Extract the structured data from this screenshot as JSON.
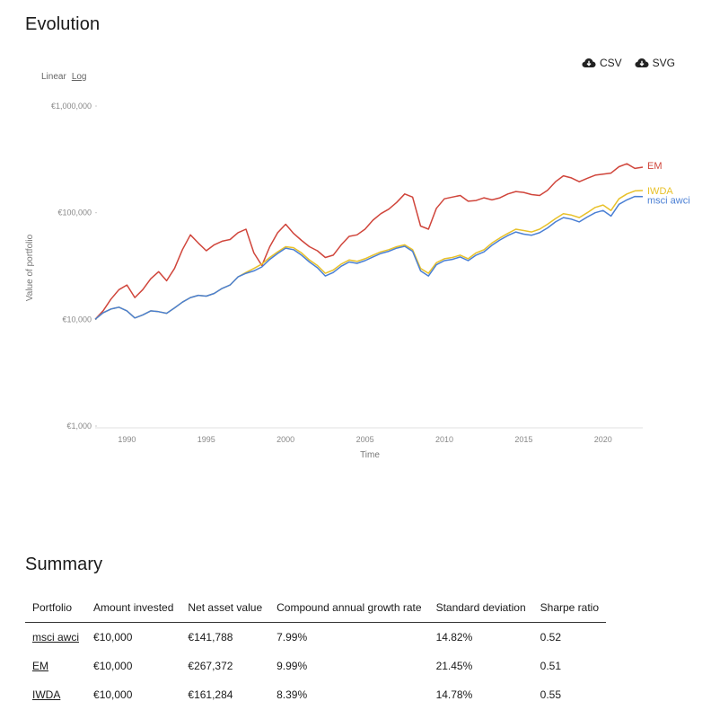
{
  "evolution": {
    "title": "Evolution",
    "scale": {
      "linear_label": "Linear",
      "log_label": "Log",
      "active": "Log"
    },
    "downloads": [
      {
        "label": "CSV",
        "icon": "cloud-download-icon"
      },
      {
        "label": "SVG",
        "icon": "cloud-download-icon"
      }
    ]
  },
  "chart_data": {
    "type": "line",
    "xlabel": "Time",
    "ylabel": "Value of portfolio",
    "yscale": "log",
    "ylim": [
      1000,
      1000000
    ],
    "xlim": [
      1988.0,
      2022.5
    ],
    "y_ticks": [
      {
        "value": 1000,
        "label": "€1,000"
      },
      {
        "value": 10000,
        "label": "€10,000"
      },
      {
        "value": 100000,
        "label": "€100,000"
      },
      {
        "value": 1000000,
        "label": "€1,000,000"
      }
    ],
    "x_ticks": [
      {
        "value": 1990,
        "label": "1990"
      },
      {
        "value": 1995,
        "label": "1995"
      },
      {
        "value": 2000,
        "label": "2000"
      },
      {
        "value": 2005,
        "label": "2005"
      },
      {
        "value": 2010,
        "label": "2010"
      },
      {
        "value": 2015,
        "label": "2015"
      },
      {
        "value": 2020,
        "label": "2020"
      }
    ],
    "grid": false,
    "legend": "end-of-line labels",
    "series": [
      {
        "name": "EM",
        "color": "#d0453b",
        "x": [
          1988.0,
          1988.5,
          1989.0,
          1989.5,
          1990.0,
          1990.5,
          1991.0,
          1991.5,
          1992.0,
          1992.5,
          1993.0,
          1993.5,
          1994.0,
          1994.5,
          1995.0,
          1995.5,
          1996.0,
          1996.5,
          1997.0,
          1997.5,
          1998.0,
          1998.5,
          1999.0,
          1999.5,
          2000.0,
          2000.5,
          2001.0,
          2001.5,
          2002.0,
          2002.5,
          2003.0,
          2003.5,
          2004.0,
          2004.5,
          2005.0,
          2005.5,
          2006.0,
          2006.5,
          2007.0,
          2007.5,
          2008.0,
          2008.5,
          2009.0,
          2009.5,
          2010.0,
          2010.5,
          2011.0,
          2011.5,
          2012.0,
          2012.5,
          2013.0,
          2013.5,
          2014.0,
          2014.5,
          2015.0,
          2015.5,
          2016.0,
          2016.5,
          2017.0,
          2017.5,
          2018.0,
          2018.5,
          2019.0,
          2019.5,
          2020.0,
          2020.5,
          2021.0,
          2021.5,
          2022.0,
          2022.5
        ],
        "values": [
          10000,
          12000,
          15500,
          19000,
          21000,
          16000,
          19000,
          24000,
          28000,
          23000,
          30000,
          45000,
          62000,
          52000,
          44000,
          50000,
          54000,
          56000,
          65000,
          70000,
          42000,
          32000,
          48000,
          65000,
          78000,
          64000,
          55000,
          48000,
          44000,
          38000,
          40000,
          50000,
          60000,
          62000,
          70000,
          85000,
          98000,
          108000,
          125000,
          150000,
          140000,
          75000,
          70000,
          110000,
          135000,
          140000,
          145000,
          128000,
          130000,
          138000,
          132000,
          138000,
          150000,
          158000,
          155000,
          148000,
          145000,
          162000,
          195000,
          222000,
          212000,
          195000,
          210000,
          225000,
          230000,
          235000,
          270000,
          288000,
          260000,
          267372
        ]
      },
      {
        "name": "IWDA",
        "color": "#e8c12a",
        "x": [
          1988.0,
          1988.5,
          1989.0,
          1989.5,
          1990.0,
          1990.5,
          1991.0,
          1991.5,
          1992.0,
          1992.5,
          1993.0,
          1993.5,
          1994.0,
          1994.5,
          1995.0,
          1995.5,
          1996.0,
          1996.5,
          1997.0,
          1997.5,
          1998.0,
          1998.5,
          1999.0,
          1999.5,
          2000.0,
          2000.5,
          2001.0,
          2001.5,
          2002.0,
          2002.5,
          2003.0,
          2003.5,
          2004.0,
          2004.5,
          2005.0,
          2005.5,
          2006.0,
          2006.5,
          2007.0,
          2007.5,
          2008.0,
          2008.5,
          2009.0,
          2009.5,
          2010.0,
          2010.5,
          2011.0,
          2011.5,
          2012.0,
          2012.5,
          2013.0,
          2013.5,
          2014.0,
          2014.5,
          2015.0,
          2015.5,
          2016.0,
          2016.5,
          2017.0,
          2017.5,
          2018.0,
          2018.5,
          2019.0,
          2019.5,
          2020.0,
          2020.5,
          2021.0,
          2021.5,
          2022.0,
          2022.5
        ],
        "values": [
          10000,
          11500,
          12500,
          13000,
          12000,
          10300,
          11000,
          12000,
          11800,
          11400,
          12800,
          14500,
          16000,
          16800,
          16500,
          17500,
          19500,
          21000,
          25000,
          27500,
          30000,
          33000,
          38000,
          43000,
          48000,
          47000,
          42000,
          36000,
          32000,
          27000,
          29000,
          33000,
          36000,
          35000,
          37000,
          40000,
          43000,
          45000,
          48000,
          50000,
          45000,
          30000,
          27000,
          34000,
          37000,
          38000,
          40000,
          37000,
          42000,
          45000,
          52000,
          58000,
          64000,
          70000,
          68000,
          66000,
          70000,
          78000,
          88000,
          98000,
          95000,
          90000,
          100000,
          112000,
          118000,
          105000,
          135000,
          150000,
          160000,
          161284
        ]
      },
      {
        "name": "msci awci",
        "color": "#4a7fd4",
        "x": [
          1988.0,
          1988.5,
          1989.0,
          1989.5,
          1990.0,
          1990.5,
          1991.0,
          1991.5,
          1992.0,
          1992.5,
          1993.0,
          1993.5,
          1994.0,
          1994.5,
          1995.0,
          1995.5,
          1996.0,
          1996.5,
          1997.0,
          1997.5,
          1998.0,
          1998.5,
          1999.0,
          1999.5,
          2000.0,
          2000.5,
          2001.0,
          2001.5,
          2002.0,
          2002.5,
          2003.0,
          2003.5,
          2004.0,
          2004.5,
          2005.0,
          2005.5,
          2006.0,
          2006.5,
          2007.0,
          2007.5,
          2008.0,
          2008.5,
          2009.0,
          2009.5,
          2010.0,
          2010.5,
          2011.0,
          2011.5,
          2012.0,
          2012.5,
          2013.0,
          2013.5,
          2014.0,
          2014.5,
          2015.0,
          2015.5,
          2016.0,
          2016.5,
          2017.0,
          2017.5,
          2018.0,
          2018.5,
          2019.0,
          2019.5,
          2020.0,
          2020.5,
          2021.0,
          2021.5,
          2022.0,
          2022.5
        ],
        "values": [
          10000,
          11500,
          12500,
          13000,
          12000,
          10300,
          11000,
          12000,
          11800,
          11400,
          12800,
          14500,
          16000,
          16800,
          16500,
          17500,
          19500,
          21000,
          25000,
          27000,
          28500,
          31000,
          36500,
          41500,
          46500,
          45000,
          40000,
          34500,
          30500,
          25500,
          27500,
          31500,
          34500,
          33500,
          35500,
          38500,
          41500,
          43500,
          46500,
          48500,
          43500,
          28500,
          25500,
          32500,
          35500,
          36500,
          38500,
          35500,
          40000,
          43000,
          49500,
          55500,
          61000,
          66000,
          63000,
          61500,
          65000,
          72000,
          82000,
          90000,
          87000,
          82000,
          91000,
          100000,
          105000,
          93000,
          120000,
          132000,
          142000,
          141788
        ]
      }
    ]
  },
  "summary": {
    "title": "Summary",
    "columns": [
      "Portfolio",
      "Amount invested",
      "Net asset value",
      "Compound annual growth rate",
      "Standard deviation",
      "Sharpe ratio"
    ],
    "rows": [
      [
        "msci awci",
        "€10,000",
        "€141,788",
        "7.99%",
        "14.82%",
        "0.52"
      ],
      [
        "EM",
        "€10,000",
        "€267,372",
        "9.99%",
        "21.45%",
        "0.51"
      ],
      [
        "IWDA",
        "€10,000",
        "€161,284",
        "8.39%",
        "14.78%",
        "0.55"
      ]
    ]
  }
}
